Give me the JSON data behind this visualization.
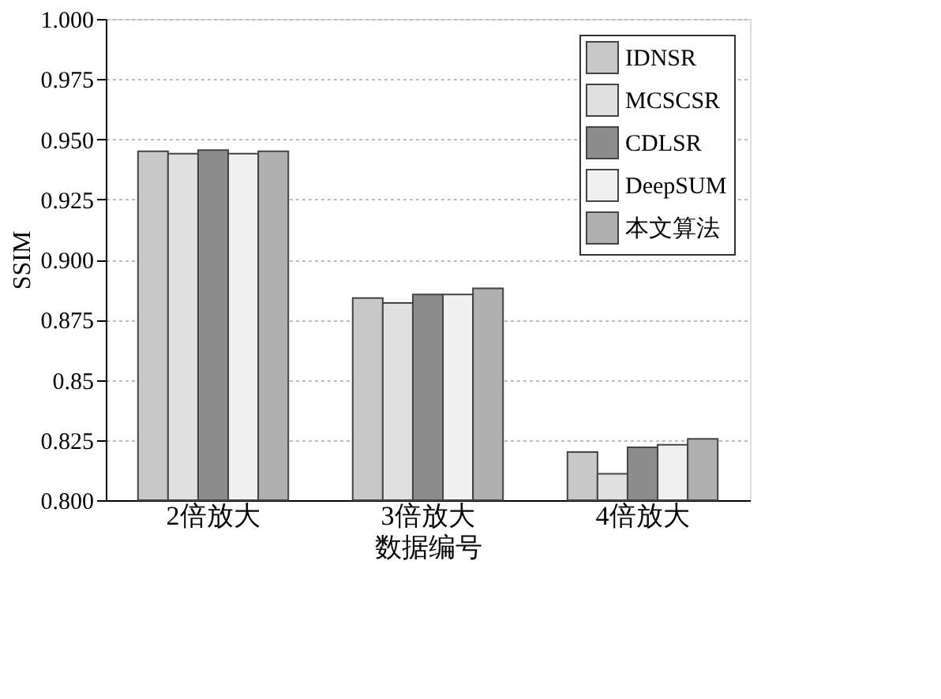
{
  "chart_data": {
    "type": "bar",
    "xlabel": "数据编号",
    "ylabel": "SSIM",
    "categories": [
      "2倍放大",
      "3倍放大",
      "4倍放大"
    ],
    "series": [
      {
        "name": "IDNSR",
        "color": "#c8c8c8",
        "values": [
          0.945,
          0.884,
          0.82
        ]
      },
      {
        "name": "MCSCSR",
        "color": "#e0e0e0",
        "values": [
          0.944,
          0.882,
          0.811
        ]
      },
      {
        "name": "CDLSR",
        "color": "#8c8c8c",
        "values": [
          0.9455,
          0.8855,
          0.822
        ]
      },
      {
        "name": "DeepSUM",
        "color": "#f0f0f0",
        "values": [
          0.944,
          0.8855,
          0.823
        ]
      },
      {
        "name": "本文算法",
        "color": "#b0b0b0",
        "values": [
          0.945,
          0.888,
          0.8255
        ]
      }
    ],
    "ylim": [
      0.8,
      1.0
    ],
    "yticks": [
      {
        "value": 0.8,
        "label": "0.800"
      },
      0.825,
      0.85,
      {
        "value": 0.875,
        "label": "0.875"
      },
      {
        "value": 0.9,
        "label": "0.900"
      },
      0.925,
      {
        "value": 0.95,
        "label": "0.950"
      },
      0.975,
      {
        "value": 1.0,
        "label": "1.000"
      }
    ],
    "grid": "y",
    "legend": "top right"
  }
}
